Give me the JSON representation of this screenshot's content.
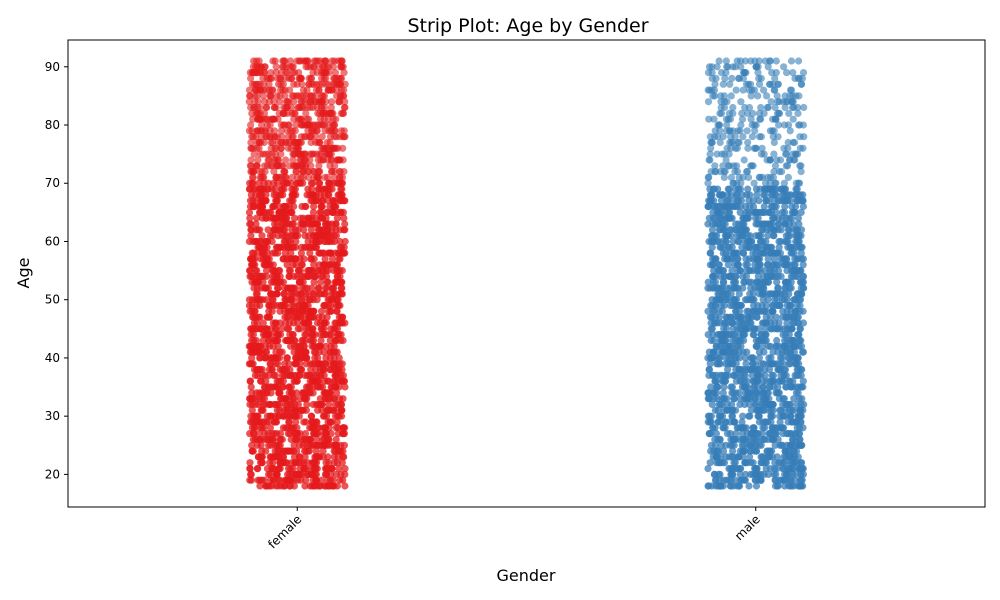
{
  "chart_data": {
    "type": "strip",
    "title": "Strip Plot: Age by Gender",
    "xlabel": "Gender",
    "ylabel": "Age",
    "categories": [
      "female",
      "male"
    ],
    "ylim": [
      14.4,
      94.6
    ],
    "yticks": [
      20,
      30,
      40,
      50,
      60,
      70,
      80,
      90
    ],
    "grid": false,
    "legend": "none",
    "series": [
      {
        "category": "female",
        "color": "#e41a1c",
        "min_age": 18,
        "max_age": 91,
        "dense_range": [
          18,
          70
        ],
        "sparse_range": [
          71,
          91
        ]
      },
      {
        "category": "male",
        "color": "#377eb8",
        "min_age": 18,
        "max_age": 91,
        "dense_range": [
          18,
          69
        ],
        "sparse_range": [
          70,
          91
        ]
      }
    ]
  }
}
